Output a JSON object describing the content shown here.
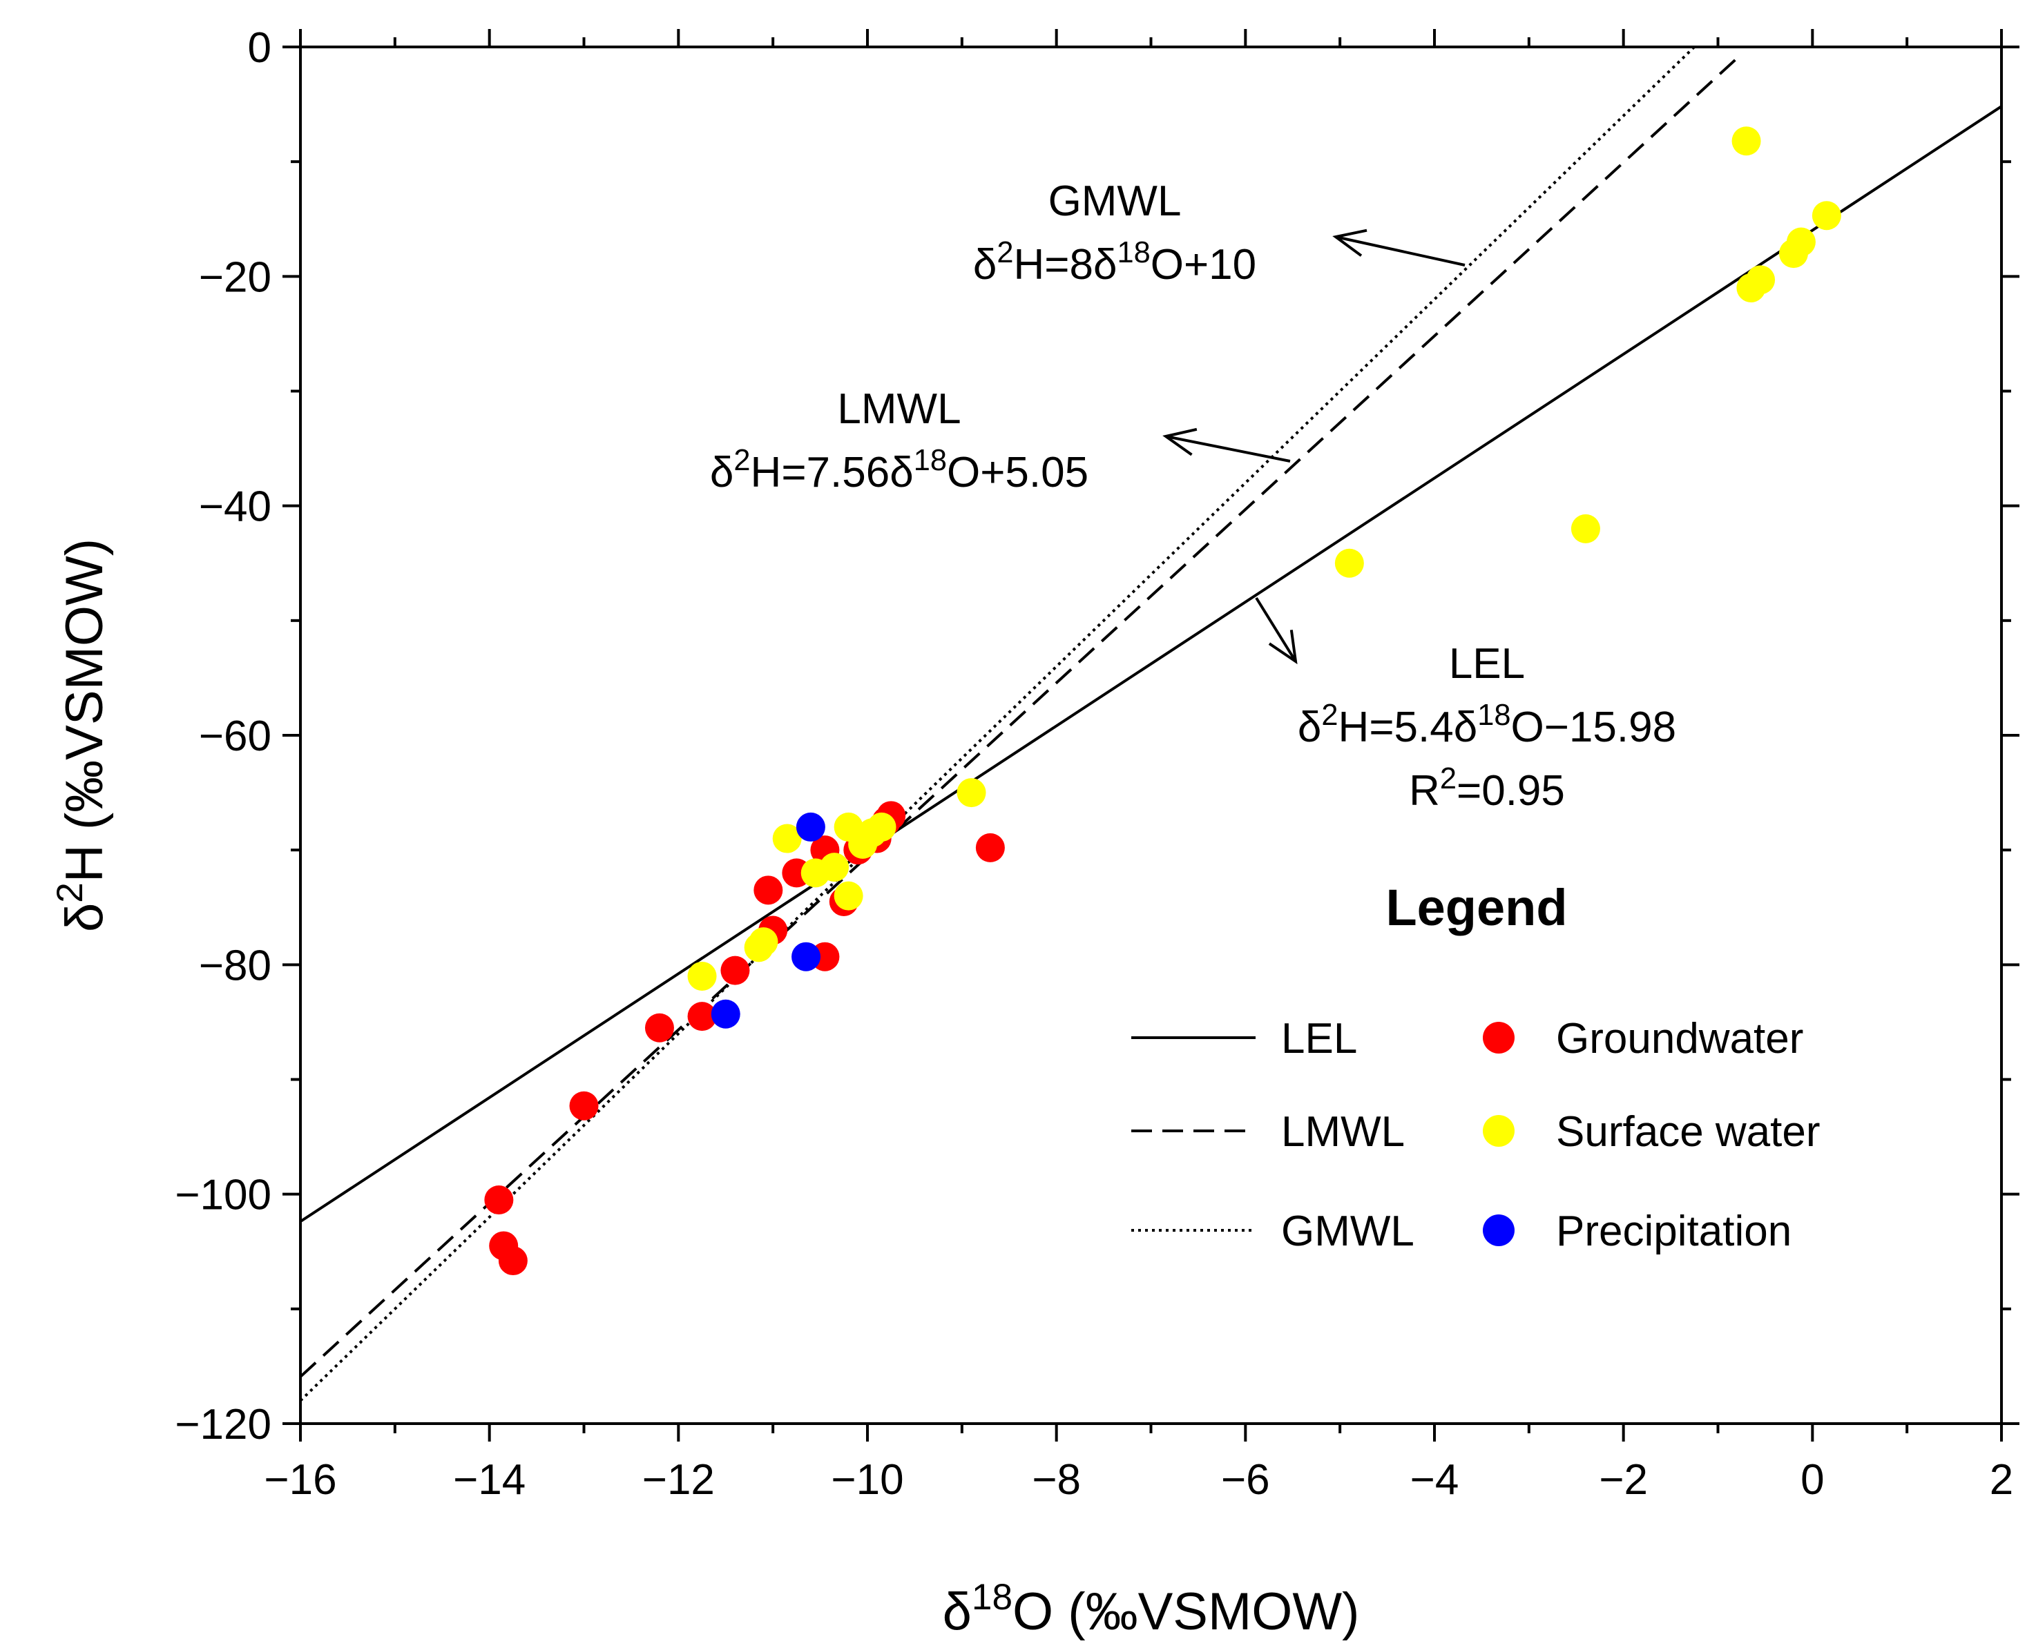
{
  "chart_data": {
    "type": "scatter",
    "xlim": [
      -16,
      2
    ],
    "ylim": [
      -120,
      0
    ],
    "xticks": [
      -16,
      -14,
      -12,
      -10,
      -8,
      -6,
      -4,
      -2,
      0,
      2
    ],
    "yticks": [
      -120,
      -100,
      -80,
      -60,
      -40,
      -20,
      0
    ],
    "x_tick_labels": [
      "−16",
      "−14",
      "−12",
      "−10",
      "−8",
      "−6",
      "−4",
      "−2",
      "0",
      "2"
    ],
    "y_tick_labels": [
      "−120",
      "−100",
      "−80",
      "−60",
      "−40",
      "−20",
      "0"
    ],
    "xlabel": {
      "pre": "δ",
      "sup": "18",
      "post": "O (‰VSMOW)"
    },
    "ylabel": {
      "pre": "δ",
      "sup": "2",
      "post": "H (‰VSMOW)"
    },
    "lines": [
      {
        "name": "LEL",
        "slope": 5.4,
        "intercept": -15.98,
        "x_range": [
          -16,
          2
        ],
        "style": "solid"
      },
      {
        "name": "LMWL",
        "slope": 7.56,
        "intercept": 5.05,
        "x_range": [
          -16,
          -0.75
        ],
        "style": "dashed"
      },
      {
        "name": "GMWL",
        "slope": 8,
        "intercept": 10,
        "x_range": [
          -16,
          -1.25
        ],
        "style": "dotted"
      }
    ],
    "annotations": [
      {
        "name": "gmwl",
        "lines": [
          [
            {
              "t": "GMWL"
            }
          ],
          [
            {
              "t": "δ"
            },
            {
              "t": "2",
              "sup": true
            },
            {
              "t": "H=8δ"
            },
            {
              "t": "18",
              "sup": true
            },
            {
              "t": "O+10"
            }
          ]
        ]
      },
      {
        "name": "lmwl",
        "lines": [
          [
            {
              "t": "LMWL"
            }
          ],
          [
            {
              "t": "δ"
            },
            {
              "t": "2",
              "sup": true
            },
            {
              "t": "H=7.56δ"
            },
            {
              "t": "18",
              "sup": true
            },
            {
              "t": "O+5.05"
            }
          ]
        ]
      },
      {
        "name": "lel",
        "lines": [
          [
            {
              "t": "LEL"
            }
          ],
          [
            {
              "t": "δ"
            },
            {
              "t": "2",
              "sup": true
            },
            {
              "t": "H=5.4δ"
            },
            {
              "t": "18",
              "sup": true
            },
            {
              "t": "O−15.98"
            }
          ],
          [
            {
              "t": "R"
            },
            {
              "t": "2",
              "sup": true
            },
            {
              "t": "=0.95"
            }
          ]
        ]
      }
    ],
    "series": [
      {
        "name": "Groundwater",
        "color": "#ff0000",
        "points": [
          [
            -13.9,
            -100.5
          ],
          [
            -13.85,
            -104.5
          ],
          [
            -13.75,
            -105.8
          ],
          [
            -13.0,
            -92.3
          ],
          [
            -12.2,
            -85.5
          ],
          [
            -11.75,
            -84.5
          ],
          [
            -11.4,
            -80.5
          ],
          [
            -11.0,
            -77.0
          ],
          [
            -11.05,
            -73.5
          ],
          [
            -10.75,
            -72.0
          ],
          [
            -10.45,
            -70.0
          ],
          [
            -10.25,
            -74.5
          ],
          [
            -10.45,
            -79.3
          ],
          [
            -10.1,
            -70.0
          ],
          [
            -9.9,
            -69.0
          ],
          [
            -9.8,
            -67.5
          ],
          [
            -9.75,
            -67.0
          ],
          [
            -8.7,
            -69.8
          ]
        ]
      },
      {
        "name": "Surface water",
        "color": "#ffff00",
        "points": [
          [
            -11.75,
            -81.0
          ],
          [
            -11.15,
            -78.5
          ],
          [
            -11.1,
            -78.0
          ],
          [
            -10.85,
            -69.0
          ],
          [
            -10.55,
            -72.0
          ],
          [
            -10.35,
            -71.5
          ],
          [
            -10.2,
            -68.0
          ],
          [
            -10.2,
            -74.0
          ],
          [
            -10.05,
            -69.5
          ],
          [
            -9.95,
            -68.5
          ],
          [
            -9.85,
            -68.0
          ],
          [
            -8.9,
            -65.0
          ],
          [
            -4.9,
            -45.0
          ],
          [
            -2.4,
            -42.0
          ],
          [
            -0.7,
            -8.2
          ],
          [
            -0.65,
            -21.0
          ],
          [
            -0.55,
            -20.3
          ],
          [
            -0.2,
            -18.0
          ],
          [
            -0.12,
            -17.0
          ],
          [
            0.15,
            -14.7
          ]
        ]
      },
      {
        "name": "Precipitation",
        "color": "#0000ff",
        "points": [
          [
            -10.6,
            -68.0
          ],
          [
            -10.65,
            -79.3
          ],
          [
            -11.5,
            -84.3
          ]
        ]
      }
    ],
    "legend": {
      "title": "Legend",
      "position": "bottom-right",
      "line_entries": [
        {
          "label": "LEL",
          "style": "solid"
        },
        {
          "label": "LMWL",
          "style": "dashed"
        },
        {
          "label": "GMWL",
          "style": "dotted"
        }
      ],
      "marker_entries": [
        {
          "label": "Groundwater",
          "color": "#ff0000"
        },
        {
          "label": "Surface water",
          "color": "#ffff00"
        },
        {
          "label": "Precipitation",
          "color": "#0000ff"
        }
      ]
    }
  }
}
